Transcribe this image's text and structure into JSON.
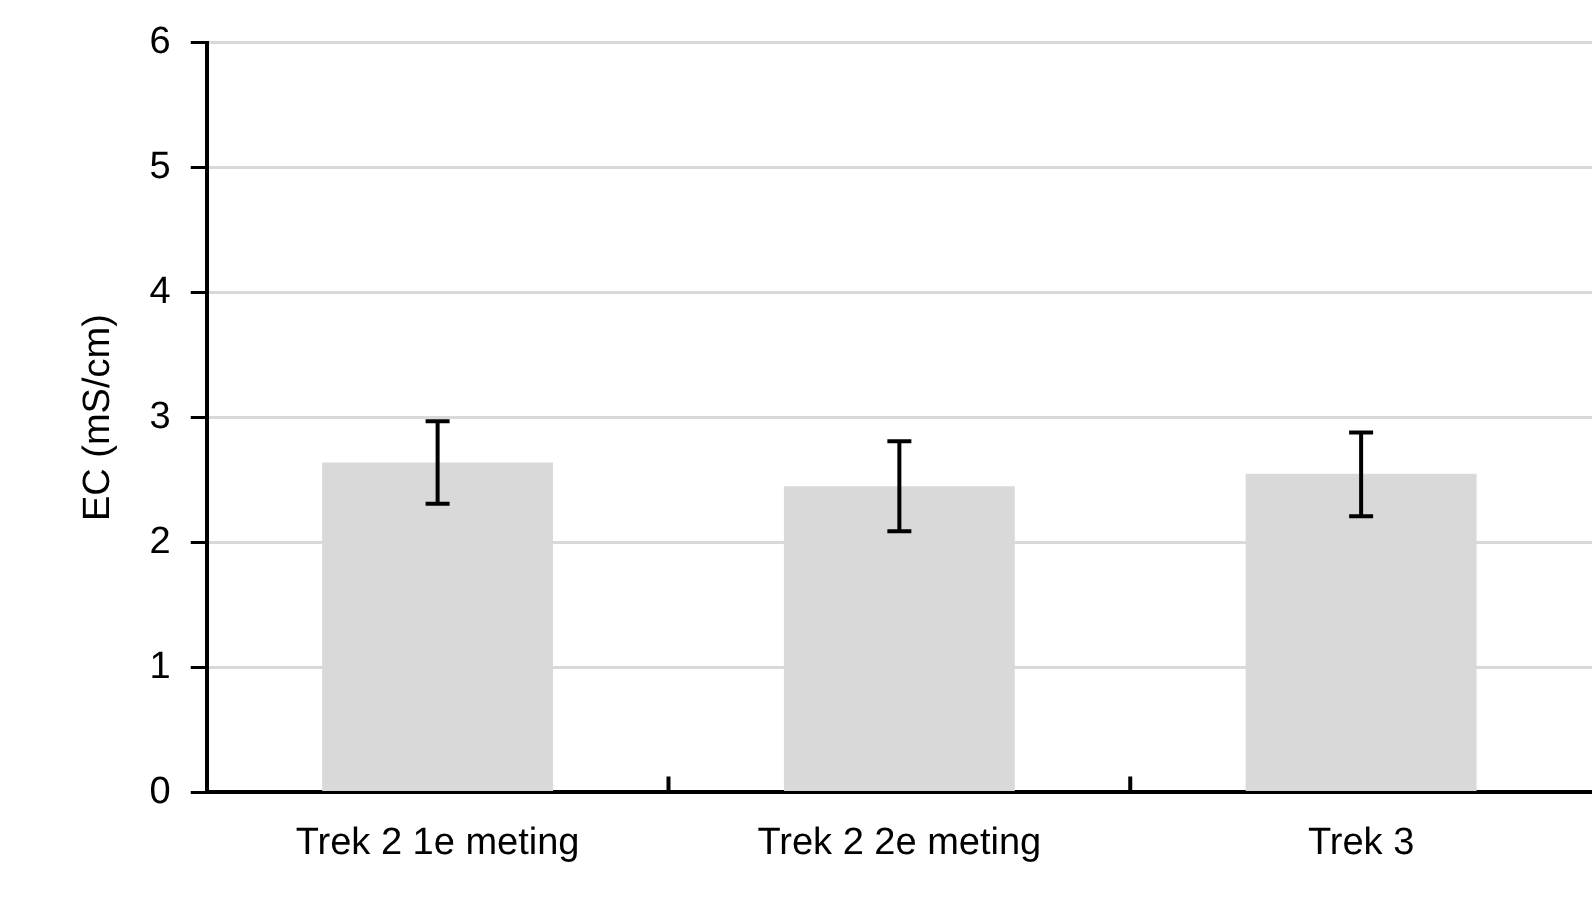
{
  "chart_data": {
    "type": "bar",
    "ylabel": "EC (mS/cm)",
    "categories": [
      "Trek 2 1e meting",
      "Trek 2 2e meting",
      "Trek 3"
    ],
    "series": [
      {
        "color": "#d9d9d9",
        "values": [
          2.64,
          2.45,
          2.55
        ],
        "errors": [
          [
            2.31,
            2.97
          ],
          [
            2.09,
            2.81
          ],
          [
            2.21,
            2.88
          ]
        ]
      }
    ],
    "ylim": [
      0,
      6
    ],
    "yticks": [
      0,
      1,
      2,
      3,
      4,
      5,
      6
    ],
    "grid": "y",
    "legend": false
  }
}
